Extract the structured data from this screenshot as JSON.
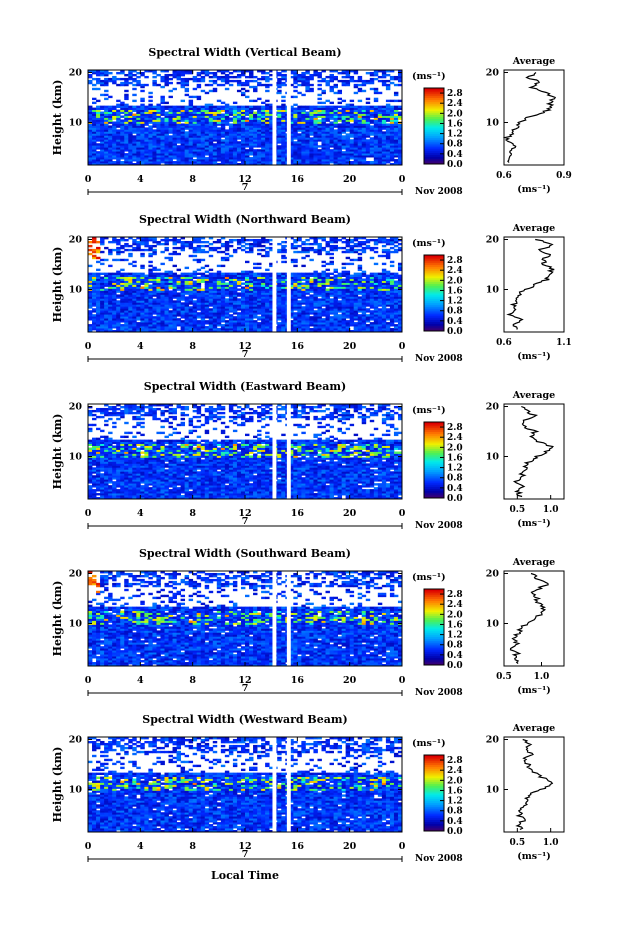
{
  "figure": {
    "xlabel": "Local Time",
    "date_label": "Nov 2008",
    "day_label": "7",
    "ylabel": "Height (km)",
    "colorbar_unit": "(ms⁻¹)",
    "average_title": "Average",
    "average_unit": "(ms⁻¹)"
  },
  "chart_data": [
    {
      "type": "heatmap",
      "title": "Spectral Width (Vertical Beam)",
      "xlabel": "Local Time",
      "ylabel": "Height (km)",
      "x_ticks": [
        "0",
        "4",
        "8",
        "12",
        "16",
        "20",
        "0"
      ],
      "xlim": [
        0,
        24
      ],
      "y_ticks": [
        "10",
        "20"
      ],
      "ylim": [
        1.5,
        20.5
      ],
      "colorbar": {
        "label": "(ms⁻¹)",
        "ticks": [
          "0.0",
          "0.4",
          "0.8",
          "1.2",
          "1.6",
          "2.0",
          "2.4",
          "2.8"
        ],
        "range": [
          0,
          3.0
        ]
      },
      "data_gaps_hours": [
        [
          14.1,
          14.4
        ],
        [
          15.2,
          15.5
        ]
      ],
      "average_profile": {
        "xlim": [
          0.6,
          0.9
        ],
        "x_ticks": [
          "0.6",
          "0.9"
        ],
        "heights_km": [
          2,
          3,
          4,
          5,
          6,
          7,
          8,
          9,
          10,
          11,
          12,
          13,
          14,
          15,
          16,
          17,
          18,
          19,
          20
        ],
        "values": [
          0.63,
          0.64,
          0.62,
          0.65,
          0.63,
          0.62,
          0.64,
          0.66,
          0.68,
          0.72,
          0.8,
          0.84,
          0.83,
          0.85,
          0.8,
          0.74,
          0.78,
          0.72,
          0.76
        ]
      }
    },
    {
      "type": "heatmap",
      "title": "Spectral Width (Northward Beam)",
      "xlabel": "Local Time",
      "ylabel": "Height (km)",
      "x_ticks": [
        "0",
        "4",
        "8",
        "12",
        "16",
        "20",
        "0"
      ],
      "xlim": [
        0,
        24
      ],
      "y_ticks": [
        "10",
        "20"
      ],
      "ylim": [
        1.5,
        20.5
      ],
      "colorbar": {
        "label": "(ms⁻¹)",
        "ticks": [
          "0.0",
          "0.4",
          "0.8",
          "1.2",
          "1.6",
          "2.0",
          "2.4",
          "2.8"
        ],
        "range": [
          0,
          3.0
        ]
      },
      "data_gaps_hours": [
        [
          14.1,
          14.4
        ],
        [
          15.2,
          15.5
        ]
      ],
      "average_profile": {
        "xlim": [
          0.6,
          1.1
        ],
        "x_ticks": [
          "0.6",
          "1.1"
        ],
        "heights_km": [
          2,
          3,
          4,
          5,
          6,
          7,
          8,
          9,
          10,
          11,
          12,
          13,
          14,
          15,
          16,
          17,
          18,
          19,
          20
        ],
        "values": [
          0.72,
          0.68,
          0.74,
          0.66,
          0.7,
          0.68,
          0.7,
          0.72,
          0.78,
          0.86,
          0.96,
          0.98,
          1.0,
          0.94,
          0.92,
          0.98,
          0.9,
          1.02,
          0.86
        ]
      }
    },
    {
      "type": "heatmap",
      "title": "Spectral Width (Eastward Beam)",
      "xlabel": "Local Time",
      "ylabel": "Height (km)",
      "x_ticks": [
        "0",
        "4",
        "8",
        "12",
        "16",
        "20",
        "0"
      ],
      "xlim": [
        0,
        24
      ],
      "y_ticks": [
        "10",
        "20"
      ],
      "ylim": [
        1.5,
        20.5
      ],
      "colorbar": {
        "label": "(ms⁻¹)",
        "ticks": [
          "0.0",
          "0.4",
          "0.8",
          "1.2",
          "1.6",
          "2.0",
          "2.4",
          "2.8"
        ],
        "range": [
          0,
          3.0
        ]
      },
      "data_gaps_hours": [
        [
          14.1,
          14.4
        ],
        [
          15.2,
          15.5
        ]
      ],
      "average_profile": {
        "xlim": [
          0.3,
          1.2
        ],
        "x_ticks": [
          "0.5",
          "1.0"
        ],
        "heights_km": [
          2,
          3,
          4,
          5,
          6,
          7,
          8,
          9,
          10,
          11,
          12,
          13,
          14,
          15,
          16,
          17,
          18,
          19,
          20
        ],
        "values": [
          0.55,
          0.52,
          0.58,
          0.5,
          0.56,
          0.6,
          0.62,
          0.68,
          0.8,
          0.95,
          1.0,
          0.82,
          0.7,
          0.76,
          0.62,
          0.58,
          0.8,
          0.66,
          0.56
        ]
      }
    },
    {
      "type": "heatmap",
      "title": "Spectral Width (Southward Beam)",
      "xlabel": "Local Time",
      "ylabel": "Height (km)",
      "x_ticks": [
        "0",
        "4",
        "8",
        "12",
        "16",
        "20",
        "0"
      ],
      "xlim": [
        0,
        24
      ],
      "y_ticks": [
        "10",
        "20"
      ],
      "ylim": [
        1.5,
        20.5
      ],
      "colorbar": {
        "label": "(ms⁻¹)",
        "ticks": [
          "0.0",
          "0.4",
          "0.8",
          "1.2",
          "1.6",
          "2.0",
          "2.4",
          "2.8"
        ],
        "range": [
          0,
          3.0
        ]
      },
      "data_gaps_hours": [
        [
          14.1,
          14.4
        ],
        [
          15.2,
          15.5
        ]
      ],
      "average_profile": {
        "xlim": [
          0.5,
          1.3
        ],
        "x_ticks": [
          "0.5",
          "1.0"
        ],
        "heights_km": [
          2,
          3,
          4,
          5,
          6,
          7,
          8,
          9,
          10,
          11,
          12,
          13,
          14,
          15,
          16,
          17,
          18,
          19,
          20
        ],
        "values": [
          0.7,
          0.62,
          0.68,
          0.6,
          0.66,
          0.62,
          0.68,
          0.72,
          0.8,
          0.92,
          1.0,
          1.02,
          0.96,
          0.94,
          0.88,
          0.96,
          1.08,
          0.94,
          0.86
        ]
      }
    },
    {
      "type": "heatmap",
      "title": "Spectral Width (Westward Beam)",
      "xlabel": "Local Time",
      "ylabel": "Height (km)",
      "x_ticks": [
        "0",
        "4",
        "8",
        "12",
        "16",
        "20",
        "0"
      ],
      "xlim": [
        0,
        24
      ],
      "y_ticks": [
        "10",
        "20"
      ],
      "ylim": [
        1.5,
        20.5
      ],
      "colorbar": {
        "label": "(ms⁻¹)",
        "ticks": [
          "0.0",
          "0.4",
          "0.8",
          "1.2",
          "1.6",
          "2.0",
          "2.4",
          "2.8"
        ],
        "range": [
          0,
          3.0
        ]
      },
      "data_gaps_hours": [
        [
          14.1,
          14.4
        ],
        [
          15.2,
          15.5
        ]
      ],
      "average_profile": {
        "xlim": [
          0.3,
          1.2
        ],
        "x_ticks": [
          "0.5",
          "1.0"
        ],
        "heights_km": [
          2,
          3,
          4,
          5,
          6,
          7,
          8,
          9,
          10,
          11,
          12,
          13,
          14,
          15,
          16,
          17,
          18,
          19,
          20
        ],
        "values": [
          0.55,
          0.52,
          0.6,
          0.52,
          0.58,
          0.62,
          0.64,
          0.7,
          0.86,
          1.0,
          0.94,
          0.8,
          0.72,
          0.66,
          0.6,
          0.74,
          0.62,
          0.7,
          0.58
        ]
      }
    }
  ]
}
